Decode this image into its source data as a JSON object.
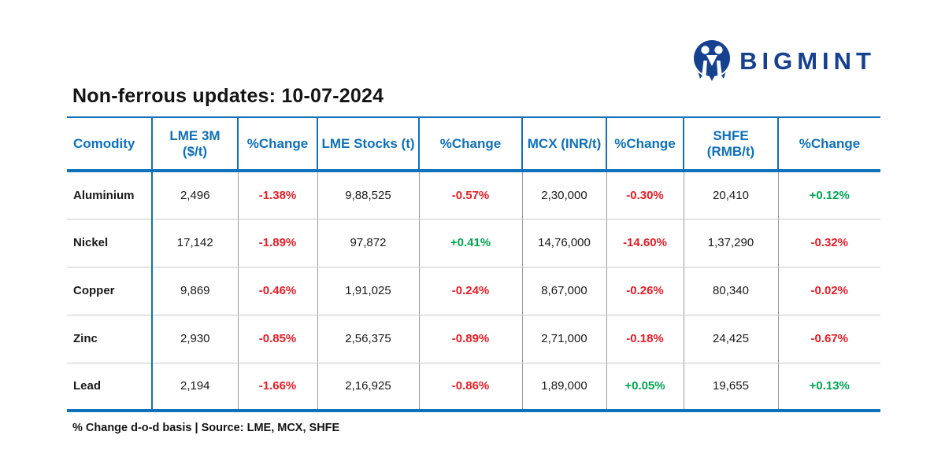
{
  "logo": {
    "text": "BIGMINT"
  },
  "title": "Non-ferrous updates: 10-07-2024",
  "footnote": "% Change d-o-d basis | Source: LME, MCX, SHFE",
  "colors": {
    "header_blue": "#0e71ba",
    "logo_navy": "#16418f",
    "negative_red": "#e71d25",
    "positive_green": "#00a551"
  },
  "chart_data": {
    "type": "table",
    "title": "Non-ferrous updates: 10-07-2024",
    "columns": [
      "Comodity",
      "LME 3M ($/t)",
      "%Change",
      "LME Stocks (t)",
      "%Change",
      "MCX (INR/t)",
      "%Change",
      "SHFE (RMB/t)",
      "%Change"
    ],
    "rows": [
      {
        "commodity": "Aluminium",
        "lme_3m": "2,496",
        "lme_3m_change": "-1.38%",
        "lme_stocks": "9,88,525",
        "lme_stocks_change": "-0.57%",
        "mcx": "2,30,000",
        "mcx_change": "-0.30%",
        "shfe": "20,410",
        "shfe_change": "+0.12%"
      },
      {
        "commodity": "Nickel",
        "lme_3m": "17,142",
        "lme_3m_change": "-1.89%",
        "lme_stocks": "97,872",
        "lme_stocks_change": "+0.41%",
        "mcx": "14,76,000",
        "mcx_change": "-14.60%",
        "shfe": "1,37,290",
        "shfe_change": "-0.32%"
      },
      {
        "commodity": "Copper",
        "lme_3m": "9,869",
        "lme_3m_change": "-0.46%",
        "lme_stocks": "1,91,025",
        "lme_stocks_change": "-0.24%",
        "mcx": "8,67,000",
        "mcx_change": "-0.26%",
        "shfe": "80,340",
        "shfe_change": "-0.02%"
      },
      {
        "commodity": "Zinc",
        "lme_3m": "2,930",
        "lme_3m_change": "-0.85%",
        "lme_stocks": "2,56,375",
        "lme_stocks_change": "-0.89%",
        "mcx": "2,71,000",
        "mcx_change": "-0.18%",
        "shfe": "24,425",
        "shfe_change": "-0.67%"
      },
      {
        "commodity": "Lead",
        "lme_3m": "2,194",
        "lme_3m_change": "-1.66%",
        "lme_stocks": "2,16,925",
        "lme_stocks_change": "-0.86%",
        "mcx": "1,89,000",
        "mcx_change": "+0.05%",
        "shfe": "19,655",
        "shfe_change": "+0.13%"
      }
    ]
  }
}
